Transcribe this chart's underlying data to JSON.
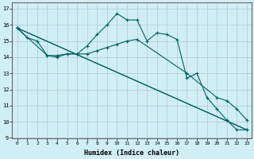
{
  "title": "",
  "xlabel": "Humidex (Indice chaleur)",
  "xlim": [
    -0.5,
    23.5
  ],
  "ylim": [
    9,
    17.4
  ],
  "yticks": [
    9,
    10,
    11,
    12,
    13,
    14,
    15,
    16,
    17
  ],
  "xticks": [
    0,
    1,
    2,
    3,
    4,
    5,
    6,
    7,
    8,
    9,
    10,
    11,
    12,
    13,
    14,
    15,
    16,
    17,
    18,
    19,
    20,
    21,
    22,
    23
  ],
  "bg_color": "#d0eef5",
  "grid_color": "#b0c8d8",
  "line_color": "#006060",
  "line1_x": [
    0,
    1,
    2,
    3,
    4,
    5,
    6,
    7,
    8,
    9,
    10,
    11,
    12,
    13,
    14,
    15,
    16,
    17,
    18,
    19,
    20,
    21,
    22,
    23
  ],
  "line1_y": [
    15.8,
    15.2,
    15.0,
    14.1,
    14.1,
    14.2,
    14.2,
    14.7,
    15.4,
    16.0,
    16.7,
    16.3,
    16.3,
    15.0,
    15.5,
    15.4,
    15.1,
    12.7,
    13.0,
    11.5,
    10.8,
    10.1,
    9.5,
    9.5
  ],
  "line2_x": [
    0,
    3,
    4,
    5,
    6,
    7,
    8,
    9,
    10,
    11,
    12,
    17,
    20,
    21,
    22,
    23
  ],
  "line2_y": [
    15.8,
    14.1,
    14.0,
    14.2,
    14.2,
    14.2,
    14.4,
    14.6,
    14.8,
    15.0,
    15.1,
    13.0,
    11.5,
    11.3,
    10.8,
    10.1
  ],
  "line3_x": [
    0,
    23
  ],
  "line3_y": [
    15.8,
    9.5
  ],
  "line4_x": [
    0,
    23
  ],
  "line4_y": [
    15.8,
    9.5
  ]
}
